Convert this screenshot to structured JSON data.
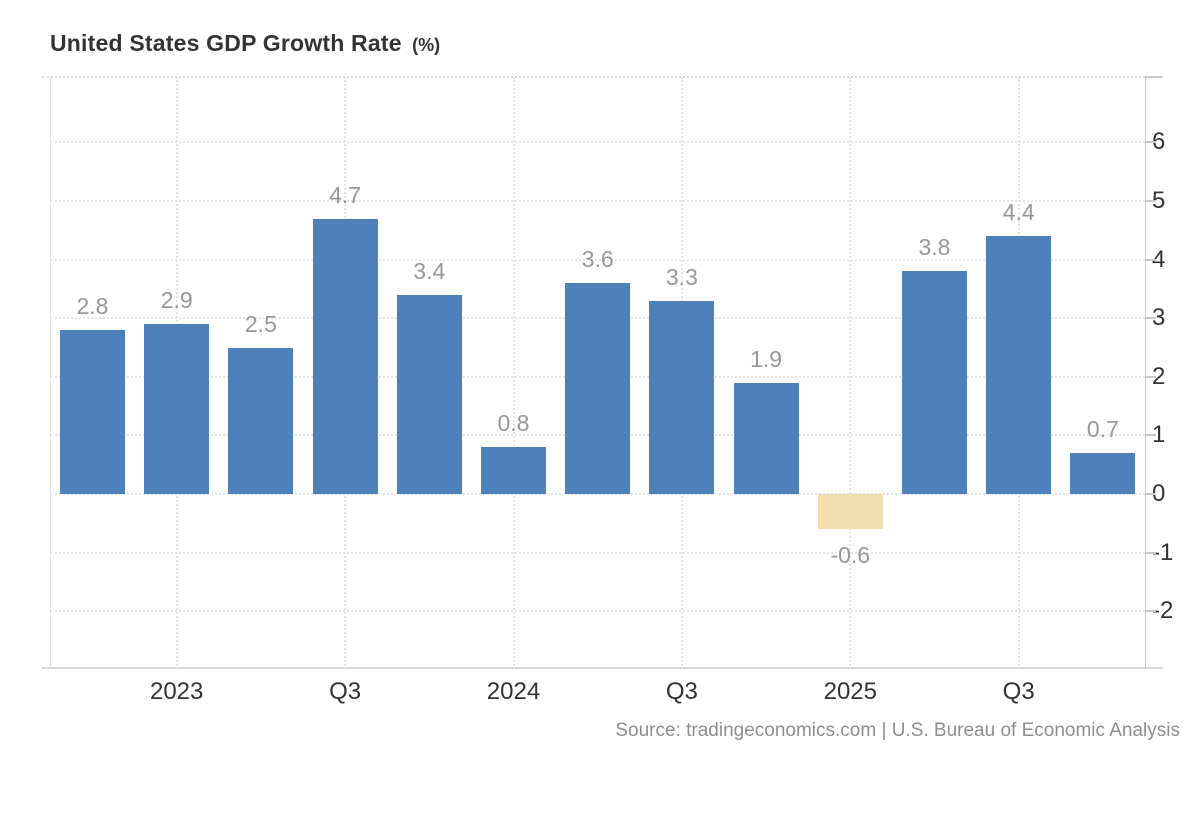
{
  "title": {
    "text": "United States GDP Growth Rate",
    "unit": "(%)"
  },
  "source": "Source: tradingeconomics.com | U.S. Bureau of Economic Analysis",
  "colors": {
    "bar": "#4e80bc",
    "bar_negative": "#f3deb0",
    "grid": "#e4e4e4",
    "axis_line": "#c9c9c9",
    "plot_border": "#d9d9d9",
    "axis_text": "#333333",
    "bar_label_text": "#979797",
    "title_text": "#333333",
    "source_text": "#8e8e8e"
  },
  "chart_data": {
    "type": "bar",
    "title": "United States GDP Growth Rate (%)",
    "xlabel": "",
    "ylabel": "",
    "values": [
      2.8,
      2.9,
      2.5,
      4.7,
      3.4,
      0.8,
      3.6,
      3.3,
      1.9,
      -0.6,
      3.8,
      4.4,
      0.7
    ],
    "bar_labels": [
      "2.8",
      "2.9",
      "2.5",
      "4.7",
      "3.4",
      "0.8",
      "3.6",
      "3.3",
      "1.9",
      "-0.6",
      "3.8",
      "4.4",
      "0.7"
    ],
    "negative_bar_indices": [
      9
    ],
    "x_tick_labels": [
      "2023",
      "Q3",
      "2024",
      "Q3",
      "2025",
      "Q3"
    ],
    "x_tick_bar_indices": [
      1,
      3,
      5,
      7,
      9,
      11
    ],
    "y_tick_labels": [
      "6",
      "5",
      "4",
      "3",
      "2",
      "1",
      "0",
      "-1",
      "-2"
    ],
    "y_ticks": [
      6,
      5,
      4,
      3,
      2,
      1,
      0,
      -1,
      -2
    ],
    "ylim": [
      -2.95,
      7.15
    ],
    "y_axis_side": "right",
    "grid": "dotted",
    "legend": "none",
    "source": "Source: tradingeconomics.com | U.S. Bureau of Economic Analysis"
  }
}
